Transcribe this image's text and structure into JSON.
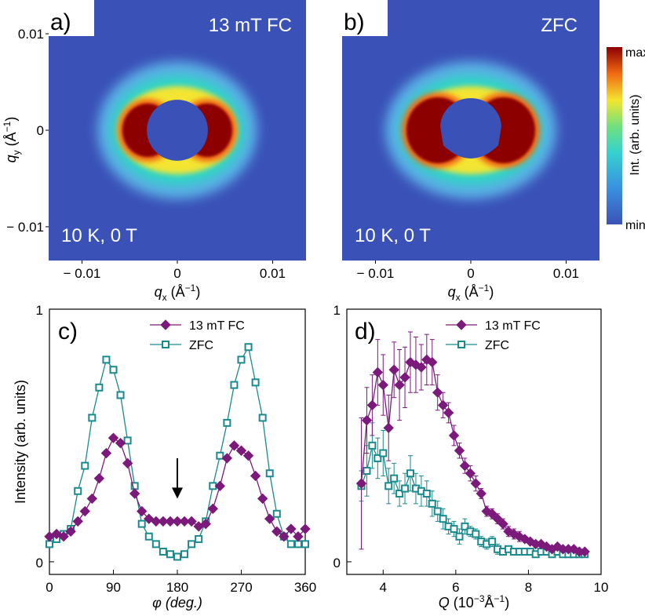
{
  "colors": {
    "map_bg": "#3a52b8",
    "ring_outer": "#5fb8ea",
    "ring_mid": "#2fd6c4",
    "ring_yellow": "#f3e530",
    "ring_orange": "#f26a12",
    "ring_core": "#8c0000",
    "fc_series": "#7b1a7b",
    "zfc_series": "#1a8a8c"
  },
  "chart_data": [
    {
      "type": "heatmap",
      "panel_label": "a)",
      "title": "13 mT FC",
      "condition": "10 K, 0 T",
      "xlabel_main": "q",
      "xlabel_sub": "x",
      "xlabel_unit": " (Å",
      "xlabel_exp": "−1",
      "xlabel_end": ")",
      "ylabel_main": "q",
      "ylabel_sub": "y",
      "ylabel_unit": " (Å",
      "ylabel_exp": "−1",
      "ylabel_end": ")",
      "xlim": [
        -0.0135,
        0.0135
      ],
      "ylim": [
        -0.0135,
        0.0135
      ],
      "xticks": [
        -0.01,
        0,
        0.01
      ],
      "xtick_labels": [
        "− 0.01",
        "0",
        "0.01"
      ],
      "yticks": [
        0.01,
        0,
        -0.01
      ],
      "ytick_labels": [
        "0.01",
        "0",
        "− 0.01"
      ],
      "beamstop_radius": 0.0032
    },
    {
      "type": "heatmap",
      "panel_label": "b)",
      "title": "ZFC",
      "condition": "10 K, 0 T",
      "xlabel_main": "q",
      "xlabel_sub": "x",
      "xlabel_unit": " (Å",
      "xlabel_exp": "−1",
      "xlabel_end": ")",
      "xlim": [
        -0.0135,
        0.0135
      ],
      "ylim": [
        -0.0135,
        0.0135
      ],
      "xticks": [
        -0.01,
        0,
        0.01
      ],
      "xtick_labels": [
        "− 0.01",
        "0",
        "0.01"
      ],
      "beamstop_radius": 0.0032
    },
    {
      "type": "colorbar",
      "max_label": "max",
      "min_label": "min",
      "title": "Int. (arb. units)"
    },
    {
      "type": "line",
      "panel_label": "c)",
      "xlabel": "φ (deg.)",
      "ylabel": "Intensity (arb. units)",
      "xlim": [
        0,
        360
      ],
      "ylim": [
        -0.05,
        1
      ],
      "xticks": [
        0,
        90,
        180,
        270,
        360
      ],
      "yticks": [
        0,
        1
      ],
      "annotation": "arrow at φ = 180",
      "arrow_x": 180,
      "arrow_y_top": 0.41,
      "arrow_y_bottom": 0.25,
      "x": [
        0,
        10,
        20,
        30,
        40,
        50,
        60,
        70,
        80,
        90,
        100,
        110,
        120,
        130,
        140,
        150,
        160,
        170,
        180,
        190,
        200,
        210,
        220,
        230,
        240,
        250,
        260,
        270,
        280,
        290,
        300,
        310,
        320,
        330,
        340,
        350,
        360
      ],
      "series": [
        {
          "name": "13 mT FC",
          "marker": "filled-diamond",
          "values": [
            0.1,
            0.11,
            0.1,
            0.12,
            0.16,
            0.2,
            0.25,
            0.33,
            0.43,
            0.49,
            0.47,
            0.39,
            0.27,
            0.2,
            0.17,
            0.16,
            0.16,
            0.16,
            0.16,
            0.16,
            0.16,
            0.14,
            0.15,
            0.21,
            0.3,
            0.41,
            0.46,
            0.44,
            0.42,
            0.34,
            0.25,
            0.17,
            0.12,
            0.1,
            0.13,
            0.1,
            0.13
          ]
        },
        {
          "name": "ZFC",
          "marker": "open-square",
          "values": [
            0.07,
            0.09,
            0.11,
            0.13,
            0.28,
            0.38,
            0.57,
            0.69,
            0.8,
            0.76,
            0.66,
            0.48,
            0.3,
            0.15,
            0.1,
            0.07,
            0.04,
            0.03,
            0.02,
            0.03,
            0.07,
            0.09,
            0.16,
            0.3,
            0.42,
            0.55,
            0.7,
            0.8,
            0.85,
            0.71,
            0.57,
            0.35,
            0.19,
            0.1,
            0.07,
            0.07,
            0.07
          ]
        }
      ]
    },
    {
      "type": "line",
      "panel_label": "d)",
      "xlabel_main": "Q",
      "xlabel_unit": " (10",
      "xlabel_exp1": "−3",
      "xlabel_mid": "Å",
      "xlabel_exp2": "−1",
      "xlabel_end": ")",
      "xlim": [
        3.0,
        10.0
      ],
      "ylim": [
        -0.05,
        1
      ],
      "xticks": [
        4,
        6,
        8,
        10
      ],
      "yticks": [
        0,
        1
      ],
      "x": [
        3.4,
        3.55,
        3.7,
        3.85,
        4.0,
        4.15,
        4.3,
        4.45,
        4.6,
        4.75,
        4.9,
        5.05,
        5.2,
        5.35,
        5.5,
        5.65,
        5.8,
        5.95,
        6.1,
        6.25,
        6.4,
        6.55,
        6.7,
        6.85,
        7.0,
        7.15,
        7.3,
        7.45,
        7.6,
        7.75,
        7.9,
        8.05,
        8.2,
        8.35,
        8.5,
        8.65,
        8.8,
        8.95,
        9.1,
        9.25,
        9.4,
        9.55
      ],
      "series": [
        {
          "name": "13 mT FC",
          "marker": "filled-diamond",
          "values": [
            0.31,
            0.56,
            0.62,
            0.75,
            0.7,
            0.53,
            0.76,
            0.7,
            0.73,
            0.79,
            0.78,
            0.77,
            0.8,
            0.79,
            0.67,
            0.62,
            0.59,
            0.5,
            0.44,
            0.38,
            0.35,
            0.31,
            0.27,
            0.2,
            0.19,
            0.17,
            0.15,
            0.12,
            0.11,
            0.1,
            0.09,
            0.08,
            0.07,
            0.07,
            0.06,
            0.05,
            0.06,
            0.05,
            0.05,
            0.05,
            0.04,
            0.04
          ],
          "errors": [
            0.26,
            0.13,
            0.12,
            0.13,
            0.12,
            0.13,
            0.11,
            0.14,
            0.12,
            0.12,
            0.11,
            0.09,
            0.1,
            0.09,
            0.07,
            0.05,
            0.04,
            0.04,
            0.03,
            0.03,
            0.03,
            0.03,
            0.02,
            0.02,
            0.02,
            0.02,
            0.02,
            0.02,
            0.02,
            0.02,
            0.01,
            0.01,
            0.01,
            0.01,
            0.01,
            0.01,
            0.01,
            0.01,
            0.01,
            0.01,
            0.01,
            0.01
          ]
        },
        {
          "name": "ZFC",
          "marker": "open-square",
          "values": [
            0.3,
            0.36,
            0.46,
            0.41,
            0.43,
            0.3,
            0.33,
            0.27,
            0.29,
            0.35,
            0.29,
            0.28,
            0.27,
            0.23,
            0.2,
            0.17,
            0.14,
            0.13,
            0.1,
            0.14,
            0.12,
            0.11,
            0.08,
            0.07,
            0.08,
            0.05,
            0.04,
            0.05,
            0.04,
            0.04,
            0.04,
            0.04,
            0.03,
            0.04,
            0.04,
            0.03,
            0.04,
            0.03,
            0.03,
            0.03,
            0.03,
            0.03
          ],
          "errors": [
            0.06,
            0.1,
            0.09,
            0.08,
            0.09,
            0.07,
            0.06,
            0.05,
            0.06,
            0.07,
            0.06,
            0.06,
            0.05,
            0.05,
            0.04,
            0.04,
            0.03,
            0.03,
            0.03,
            0.03,
            0.02,
            0.02,
            0.02,
            0.02,
            0.02,
            0.02,
            0.01,
            0.01,
            0.01,
            0.01,
            0.01,
            0.01,
            0.01,
            0.01,
            0.01,
            0.01,
            0.01,
            0.01,
            0.01,
            0.01,
            0.01,
            0.01
          ]
        }
      ]
    }
  ]
}
